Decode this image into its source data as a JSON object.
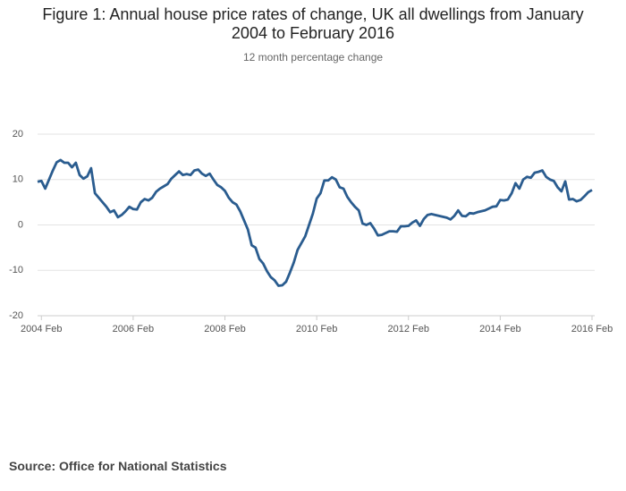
{
  "chart_data": {
    "type": "line",
    "title": "Figure 1: Annual house price rates of change, UK all dwellings from January 2004 to February 2016",
    "subtitle": "12 month percentage change",
    "source": "Source: Office for National Statistics",
    "x": [
      "2004 Jan",
      "2004 Feb",
      "2004 Mar",
      "2004 Apr",
      "2004 May",
      "2004 Jun",
      "2004 Jul",
      "2004 Aug",
      "2004 Sep",
      "2004 Oct",
      "2004 Nov",
      "2004 Dec",
      "2005 Jan",
      "2005 Feb",
      "2005 Mar",
      "2005 Apr",
      "2005 May",
      "2005 Jun",
      "2005 Jul",
      "2005 Aug",
      "2005 Sep",
      "2005 Oct",
      "2005 Nov",
      "2005 Dec",
      "2006 Jan",
      "2006 Feb",
      "2006 Mar",
      "2006 Apr",
      "2006 May",
      "2006 Jun",
      "2006 Jul",
      "2006 Aug",
      "2006 Sep",
      "2006 Oct",
      "2006 Nov",
      "2006 Dec",
      "2007 Jan",
      "2007 Feb",
      "2007 Mar",
      "2007 Apr",
      "2007 May",
      "2007 Jun",
      "2007 Jul",
      "2007 Aug",
      "2007 Sep",
      "2007 Oct",
      "2007 Nov",
      "2007 Dec",
      "2008 Jan",
      "2008 Feb",
      "2008 Mar",
      "2008 Apr",
      "2008 May",
      "2008 Jun",
      "2008 Jul",
      "2008 Aug",
      "2008 Sep",
      "2008 Oct",
      "2008 Nov",
      "2008 Dec",
      "2009 Jan",
      "2009 Feb",
      "2009 Mar",
      "2009 Apr",
      "2009 May",
      "2009 Jun",
      "2009 Jul",
      "2009 Aug",
      "2009 Sep",
      "2009 Oct",
      "2009 Nov",
      "2009 Dec",
      "2010 Jan",
      "2010 Feb",
      "2010 Mar",
      "2010 Apr",
      "2010 May",
      "2010 Jun",
      "2010 Jul",
      "2010 Aug",
      "2010 Sep",
      "2010 Oct",
      "2010 Nov",
      "2010 Dec",
      "2011 Jan",
      "2011 Feb",
      "2011 Mar",
      "2011 Apr",
      "2011 May",
      "2011 Jun",
      "2011 Jul",
      "2011 Aug",
      "2011 Sep",
      "2011 Oct",
      "2011 Nov",
      "2011 Dec",
      "2012 Jan",
      "2012 Feb",
      "2012 Mar",
      "2012 Apr",
      "2012 May",
      "2012 Jun",
      "2012 Jul",
      "2012 Aug",
      "2012 Sep",
      "2012 Oct",
      "2012 Nov",
      "2012 Dec",
      "2013 Jan",
      "2013 Feb",
      "2013 Mar",
      "2013 Apr",
      "2013 May",
      "2013 Jun",
      "2013 Jul",
      "2013 Aug",
      "2013 Sep",
      "2013 Oct",
      "2013 Nov",
      "2013 Dec",
      "2014 Jan",
      "2014 Feb",
      "2014 Mar",
      "2014 Apr",
      "2014 May",
      "2014 Jun",
      "2014 Jul",
      "2014 Aug",
      "2014 Sep",
      "2014 Oct",
      "2014 Nov",
      "2014 Dec",
      "2015 Jan",
      "2015 Feb",
      "2015 Mar",
      "2015 Apr",
      "2015 May",
      "2015 Jun",
      "2015 Jul",
      "2015 Aug",
      "2015 Sep",
      "2015 Oct",
      "2015 Nov",
      "2015 Dec",
      "2016 Jan",
      "2016 Feb"
    ],
    "values": [
      9.5,
      9.7,
      8,
      10,
      12,
      13.8,
      14.3,
      13.7,
      13.7,
      12.7,
      13.7,
      11,
      10.2,
      10.7,
      12.5,
      7,
      6,
      5,
      4,
      2.8,
      3.2,
      1.7,
      2.2,
      3,
      4,
      3.5,
      3.4,
      5,
      5.7,
      5.4,
      6,
      7.3,
      8,
      8.5,
      9,
      10.2,
      11,
      11.8,
      11,
      11.2,
      11,
      12,
      12.2,
      11.3,
      10.8,
      11.3,
      10,
      8.8,
      8.3,
      7.5,
      6,
      5,
      4.5,
      3,
      1,
      -1,
      -4.5,
      -5,
      -7.5,
      -8.5,
      -10.2,
      -11.5,
      -12.2,
      -13.4,
      -13.3,
      -12.5,
      -10.5,
      -8.3,
      -5.5,
      -4,
      -2.5,
      0,
      2.5,
      5.8,
      7,
      9.8,
      9.8,
      10.5,
      10,
      8.3,
      8,
      6.2,
      5,
      4,
      3.2,
      0.3,
      0,
      0.4,
      -0.8,
      -2.3,
      -2.2,
      -1.8,
      -1.4,
      -1.4,
      -1.5,
      -0.3,
      -0.3,
      -0.2,
      0.5,
      1,
      -0.2,
      1.3,
      2.2,
      2.4,
      2.2,
      2,
      1.8,
      1.6,
      1.2,
      2,
      3.2,
      2,
      1.9,
      2.6,
      2.5,
      2.8,
      3,
      3.2,
      3.6,
      4,
      4.1,
      5.5,
      5.4,
      5.6,
      7,
      9.2,
      8,
      10,
      10.6,
      10.4,
      11.5,
      11.7,
      12,
      10.6,
      10,
      9.7,
      8.3,
      7.4,
      9.6,
      5.6,
      5.7,
      5.2,
      5.5,
      6.3,
      7.2,
      7.7
    ],
    "color": "#2a5c8f",
    "xticks": [
      "2004 Feb",
      "2006 Feb",
      "2008 Feb",
      "2010 Feb",
      "2012 Feb",
      "2014 Feb",
      "2016 Feb"
    ],
    "ylim": [
      -20,
      20
    ],
    "yticks": [
      -20,
      -10,
      0,
      10,
      20
    ],
    "grid": true
  }
}
